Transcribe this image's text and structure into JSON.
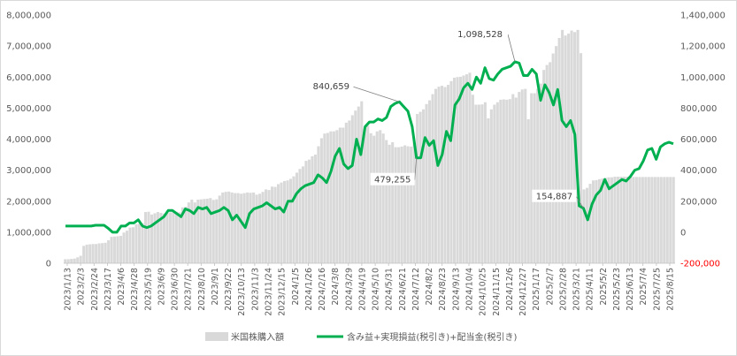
{
  "chart_data": {
    "type": "bar+line",
    "title": "",
    "y_left": {
      "min": 0,
      "max": 8000000,
      "step": 1000000,
      "tick_labels": [
        "0",
        "1,000,000",
        "2,000,000",
        "3,000,000",
        "4,000,000",
        "5,000,000",
        "6,000,000",
        "7,000,000",
        "8,000,000"
      ]
    },
    "y_right": {
      "min": -200000,
      "max": 1400000,
      "step": 200000,
      "tick_labels": [
        "-200,000",
        "0",
        "200,000",
        "400,000",
        "600,000",
        "800,000",
        "1,000,000",
        "1,200,000",
        "1,400,000"
      ]
    },
    "x_tick_labels": [
      "2023/1/13",
      "2023/2/3",
      "2023/2/24",
      "2023/3/17",
      "2023/4/6",
      "2023/4/28",
      "2023/5/19",
      "2023/6/9",
      "2023/6/30",
      "2023/7/21",
      "2023/8/10",
      "2023/9/1",
      "2023/9/22",
      "2023/10/13",
      "2023/11/3",
      "2023/11/24",
      "2023/12/15",
      "2024/1/5",
      "2024/1/26",
      "2024/2/16",
      "2024/3/8",
      "2024/3/29",
      "2024/4/19",
      "2024/5/10",
      "2024/5/31",
      "2024/6/21",
      "2024/7/12",
      "2024/8/2",
      "2024/8/23",
      "2024/9/13",
      "2024/10/4",
      "2024/10/25",
      "2024/11/15",
      "2024/12/6",
      "2024/12/27",
      "2025/1/17",
      "2025/2/7",
      "2025/2/28",
      "2025/3/21",
      "2025/4/11",
      "2025/5/2",
      "2025/5/23",
      "2025/6/13",
      "2025/7/4",
      "2025/7/25",
      "2025/8/15"
    ],
    "series": [
      {
        "name": "米国株購入額",
        "type": "bar",
        "axis": "left",
        "color": "#d9d9d9",
        "values": [
          130000,
          130000,
          140000,
          150000,
          190000,
          240000,
          560000,
          600000,
          610000,
          620000,
          620000,
          640000,
          650000,
          660000,
          740000,
          850000,
          860000,
          870000,
          880000,
          990000,
          1050000,
          1150000,
          1160000,
          1260000,
          1270000,
          1290000,
          1650000,
          1660000,
          1570000,
          1610000,
          1650000,
          1620000,
          1600000,
          1620000,
          1640000,
          1660000,
          1660000,
          1640000,
          1800000,
          1820000,
          1960000,
          2050000,
          1960000,
          2050000,
          2060000,
          2070000,
          2080000,
          2100000,
          2040000,
          2060000,
          2180000,
          2280000,
          2300000,
          2310000,
          2280000,
          2260000,
          2260000,
          2240000,
          2260000,
          2280000,
          2270000,
          2280000,
          2210000,
          2240000,
          2300000,
          2380000,
          2360000,
          2470000,
          2460000,
          2550000,
          2600000,
          2650000,
          2670000,
          2720000,
          2800000,
          2920000,
          3040000,
          3120000,
          3300000,
          3340000,
          3450000,
          3500000,
          3770000,
          4030000,
          4180000,
          4200000,
          4250000,
          4250000,
          4290000,
          4370000,
          4370000,
          4530000,
          4600000,
          4770000,
          4920000,
          5050000,
          5220000,
          4370000,
          4430000,
          4190000,
          4110000,
          4250000,
          4290000,
          4180000,
          3970000,
          3820000,
          3900000,
          3740000,
          3740000,
          3760000,
          3800000,
          3770000,
          3760000,
          3910000,
          4810000,
          4880000,
          4960000,
          5130000,
          5250000,
          5450000,
          5620000,
          5690000,
          5720000,
          5680000,
          5750000,
          5870000,
          5980000,
          6000000,
          6010000,
          6050000,
          6090000,
          6140000,
          5430000,
          5110000,
          5110000,
          5120000,
          5190000,
          4670000,
          4960000,
          5110000,
          5190000,
          5270000,
          5280000,
          5270000,
          5290000,
          5450000,
          5340000,
          5520000,
          5600000,
          5620000,
          4640000,
          5480000,
          5480000,
          5620000,
          5790000,
          6230000,
          6390000,
          6480000,
          6760000,
          7000000,
          7260000,
          7520000,
          7340000,
          7400000,
          7500000,
          7450000,
          7520000,
          6770000,
          2380000,
          2430000,
          2560000,
          2670000,
          2680000,
          2710000,
          2730000,
          2750000,
          2770000,
          2770000,
          2790000,
          2790000,
          2790000,
          2790000,
          2790000,
          2780000,
          2780000,
          2780000,
          2780000,
          2780000,
          2780000,
          2780000,
          2780000,
          2780000,
          2780000,
          2780000,
          2780000,
          2780000,
          2780000,
          2780000
        ]
      },
      {
        "name": "含み益+実現損益(税引き)+配当金(税引き)",
        "type": "line",
        "axis": "right",
        "color": "#00b050",
        "values": [
          40000,
          40000,
          40000,
          40000,
          40000,
          40000,
          40000,
          45000,
          45000,
          45000,
          25000,
          0,
          0,
          40000,
          40000,
          60000,
          60000,
          80000,
          40000,
          30000,
          40000,
          60000,
          80000,
          100000,
          140000,
          140000,
          120000,
          100000,
          150000,
          140000,
          120000,
          160000,
          150000,
          160000,
          120000,
          130000,
          140000,
          160000,
          140000,
          80000,
          110000,
          70000,
          30000,
          120000,
          150000,
          160000,
          170000,
          190000,
          170000,
          150000,
          160000,
          130000,
          200000,
          200000,
          250000,
          280000,
          300000,
          310000,
          320000,
          370000,
          350000,
          320000,
          390000,
          490000,
          540000,
          440000,
          410000,
          430000,
          600000,
          500000,
          680000,
          710000,
          710000,
          730000,
          720000,
          740000,
          810000,
          830000,
          840659,
          810000,
          780000,
          680000,
          479255,
          480000,
          610000,
          560000,
          590000,
          430000,
          500000,
          650000,
          590000,
          820000,
          860000,
          930000,
          960000,
          920000,
          1000000,
          960000,
          1060000,
          990000,
          980000,
          1020000,
          1050000,
          1060000,
          1070000,
          1098528,
          1090000,
          1010000,
          1010000,
          1050000,
          1020000,
          850000,
          950000,
          900000,
          820000,
          920000,
          720000,
          680000,
          720000,
          630000,
          170000,
          154887,
          80000,
          180000,
          240000,
          270000,
          340000,
          280000,
          300000,
          320000,
          340000,
          330000,
          360000,
          400000,
          410000,
          460000,
          530000,
          540000,
          470000,
          550000,
          570000,
          580000,
          570000
        ]
      }
    ],
    "annotations": [
      {
        "label": "840,659",
        "value": 840659
      },
      {
        "label": "479,255",
        "value": 479255
      },
      {
        "label": "1,098,528",
        "value": 1098528
      },
      {
        "label": "154,887",
        "value": 154887
      }
    ],
    "legend": {
      "position": "bottom",
      "items": [
        "米国株購入額",
        "含み益+実現損益(税引き)+配当金(税引き)"
      ]
    },
    "grid": false
  }
}
